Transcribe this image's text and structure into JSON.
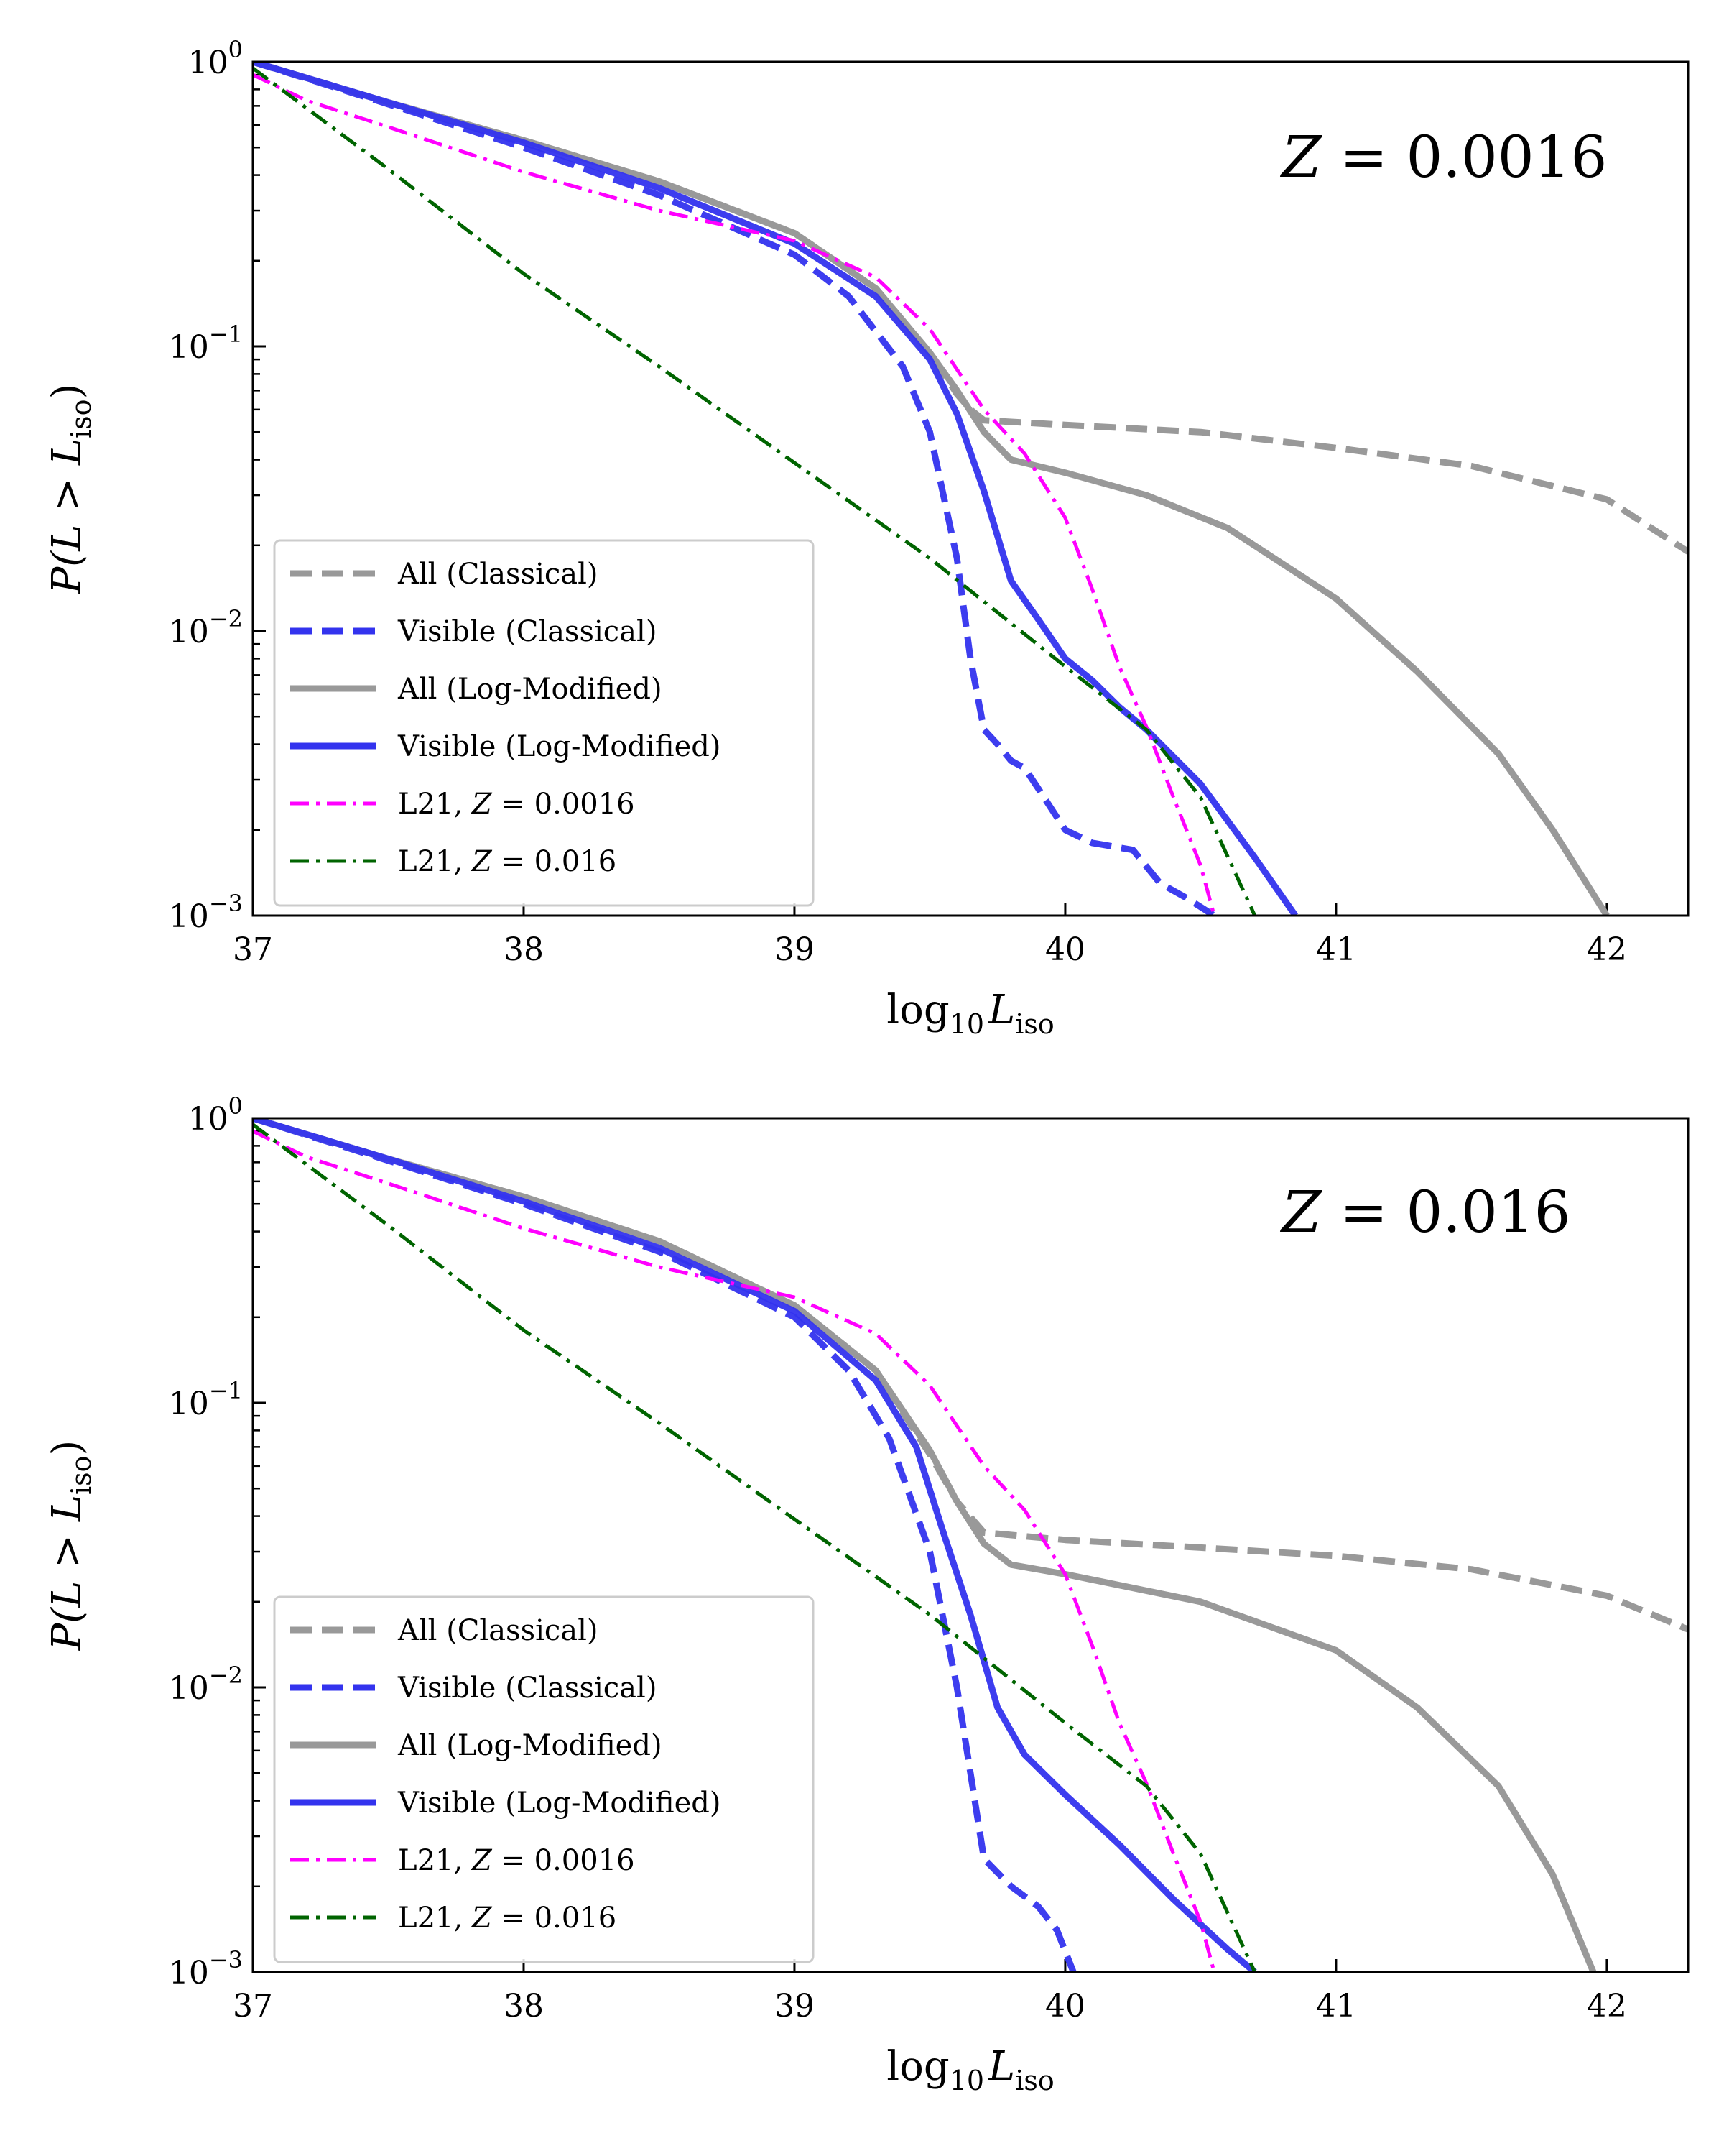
{
  "colors": {
    "all": "#999999",
    "visible": "#3333ee",
    "l21_z0016": "#ff00ff",
    "l21_z016": "#006400"
  },
  "chart_data": [
    {
      "type": "line",
      "annotation": "Z = 0.0016",
      "annotation_var": "Z",
      "annotation_value": "= 0.0016",
      "xlabel": "log10 L_iso",
      "xlabel_base": "log",
      "xlabel_sub": "10",
      "xlabel_var": "L",
      "xlabel_var_sub": "iso",
      "ylabel": "P(L > L_iso)",
      "ylabel_main": "P(L > L",
      "ylabel_sub": "iso",
      "ylabel_close": ")",
      "xlim": [
        37,
        42.3
      ],
      "ylim": [
        0.001,
        1
      ],
      "yscale": "log",
      "xticks": [
        "37",
        "38",
        "39",
        "40",
        "41",
        "42"
      ],
      "yticks": [
        {
          "base": "10",
          "exp": "0"
        },
        {
          "base": "10",
          "exp": "−1"
        },
        {
          "base": "10",
          "exp": "−2"
        },
        {
          "base": "10",
          "exp": "−3"
        }
      ],
      "legend_position": "lower-left",
      "series": [
        {
          "name": "All (Classical)",
          "style": "dashed",
          "color": "all",
          "x": [
            37.0,
            37.5,
            38.0,
            38.5,
            39.0,
            39.3,
            39.5,
            39.6,
            39.65,
            39.7,
            40.0,
            40.5,
            41.0,
            41.5,
            42.0,
            42.3
          ],
          "y": [
            1.0,
            0.72,
            0.53,
            0.38,
            0.25,
            0.16,
            0.095,
            0.068,
            0.06,
            0.055,
            0.053,
            0.05,
            0.044,
            0.038,
            0.029,
            0.019
          ]
        },
        {
          "name": "Visible (Classical)",
          "style": "dashed",
          "color": "visible",
          "x": [
            37.0,
            37.5,
            38.0,
            38.5,
            39.0,
            39.2,
            39.4,
            39.5,
            39.6,
            39.65,
            39.7,
            39.75,
            39.8,
            39.85,
            39.9,
            40.0,
            40.1,
            40.25,
            40.35,
            40.45,
            40.55
          ],
          "y": [
            1.0,
            0.71,
            0.5,
            0.34,
            0.21,
            0.15,
            0.085,
            0.05,
            0.018,
            0.008,
            0.0045,
            0.004,
            0.0035,
            0.0033,
            0.0028,
            0.002,
            0.0018,
            0.0017,
            0.0013,
            0.00115,
            0.001
          ]
        },
        {
          "name": "All (Log-Modified)",
          "style": "solid",
          "color": "all",
          "x": [
            37.0,
            37.5,
            38.0,
            38.5,
            39.0,
            39.3,
            39.5,
            39.6,
            39.7,
            39.8,
            40.0,
            40.3,
            40.6,
            41.0,
            41.3,
            41.6,
            41.8,
            42.0
          ],
          "y": [
            1.0,
            0.72,
            0.53,
            0.38,
            0.25,
            0.16,
            0.095,
            0.07,
            0.05,
            0.04,
            0.036,
            0.03,
            0.023,
            0.013,
            0.0072,
            0.0037,
            0.002,
            0.001
          ]
        },
        {
          "name": "Visible (Log-Modified)",
          "style": "solid",
          "color": "visible",
          "x": [
            37.0,
            37.5,
            38.0,
            38.5,
            39.0,
            39.3,
            39.5,
            39.6,
            39.7,
            39.8,
            39.9,
            40.0,
            40.1,
            40.2,
            40.3,
            40.5,
            40.7,
            40.85
          ],
          "y": [
            1.0,
            0.72,
            0.52,
            0.36,
            0.23,
            0.15,
            0.09,
            0.058,
            0.031,
            0.015,
            0.011,
            0.008,
            0.0067,
            0.0054,
            0.0045,
            0.0029,
            0.0016,
            0.001
          ]
        },
        {
          "name": "L21, Z = 0.0016",
          "name_prefix": "L21, ",
          "name_var": "Z",
          "name_val": " = 0.0016",
          "style": "dashdot",
          "color": "l21_z0016",
          "x": [
            37.0,
            37.2,
            37.5,
            38.0,
            38.5,
            39.0,
            39.3,
            39.5,
            39.7,
            39.85,
            40.0,
            40.1,
            40.2,
            40.3,
            40.4,
            40.5,
            40.55
          ],
          "y": [
            0.9,
            0.73,
            0.59,
            0.41,
            0.3,
            0.235,
            0.175,
            0.115,
            0.06,
            0.042,
            0.025,
            0.014,
            0.0075,
            0.0046,
            0.0026,
            0.0015,
            0.001
          ]
        },
        {
          "name": "L21, Z = 0.016",
          "name_prefix": "L21, ",
          "name_var": "Z",
          "name_val": " = 0.016",
          "style": "dashdot",
          "color": "l21_z016",
          "x": [
            37.0,
            37.5,
            38.0,
            38.5,
            39.0,
            39.5,
            40.0,
            40.3,
            40.5,
            40.7
          ],
          "y": [
            0.95,
            0.42,
            0.18,
            0.085,
            0.039,
            0.018,
            0.0075,
            0.0045,
            0.0026,
            0.001
          ]
        }
      ]
    },
    {
      "type": "line",
      "annotation": "Z = 0.016",
      "annotation_var": "Z",
      "annotation_value": "= 0.016",
      "xlabel": "log10 L_iso",
      "xlabel_base": "log",
      "xlabel_sub": "10",
      "xlabel_var": "L",
      "xlabel_var_sub": "iso",
      "ylabel": "P(L > L_iso)",
      "ylabel_main": "P(L > L",
      "ylabel_sub": "iso",
      "ylabel_close": ")",
      "xlim": [
        37,
        42.3
      ],
      "ylim": [
        0.001,
        1
      ],
      "yscale": "log",
      "xticks": [
        "37",
        "38",
        "39",
        "40",
        "41",
        "42"
      ],
      "yticks": [
        {
          "base": "10",
          "exp": "0"
        },
        {
          "base": "10",
          "exp": "−1"
        },
        {
          "base": "10",
          "exp": "−2"
        },
        {
          "base": "10",
          "exp": "−3"
        }
      ],
      "legend_position": "lower-left",
      "series": [
        {
          "name": "All (Classical)",
          "style": "dashed",
          "color": "all",
          "x": [
            37.0,
            37.5,
            38.0,
            38.5,
            39.0,
            39.3,
            39.5,
            39.6,
            39.7,
            40.0,
            40.5,
            41.0,
            41.5,
            42.0,
            42.3
          ],
          "y": [
            1.0,
            0.72,
            0.53,
            0.37,
            0.22,
            0.13,
            0.066,
            0.045,
            0.035,
            0.033,
            0.031,
            0.029,
            0.026,
            0.021,
            0.016
          ]
        },
        {
          "name": "Visible (Classical)",
          "style": "dashed",
          "color": "visible",
          "x": [
            37.0,
            37.5,
            38.0,
            38.5,
            39.0,
            39.2,
            39.35,
            39.5,
            39.6,
            39.65,
            39.7,
            39.8,
            39.9,
            39.97,
            40.03
          ],
          "y": [
            1.0,
            0.71,
            0.5,
            0.34,
            0.2,
            0.13,
            0.075,
            0.03,
            0.01,
            0.005,
            0.0025,
            0.002,
            0.0017,
            0.0014,
            0.001
          ]
        },
        {
          "name": "All (Log-Modified)",
          "style": "solid",
          "color": "all",
          "x": [
            37.0,
            37.5,
            38.0,
            38.5,
            39.0,
            39.3,
            39.5,
            39.6,
            39.7,
            39.8,
            40.0,
            40.5,
            41.0,
            41.3,
            41.6,
            41.8,
            41.95
          ],
          "y": [
            1.0,
            0.72,
            0.53,
            0.37,
            0.22,
            0.13,
            0.068,
            0.045,
            0.032,
            0.027,
            0.025,
            0.02,
            0.0135,
            0.0085,
            0.0045,
            0.0022,
            0.001
          ]
        },
        {
          "name": "Visible (Log-Modified)",
          "style": "solid",
          "color": "visible",
          "x": [
            37.0,
            37.5,
            38.0,
            38.5,
            39.0,
            39.3,
            39.45,
            39.55,
            39.65,
            39.75,
            39.85,
            40.0,
            40.2,
            40.4,
            40.6,
            40.7
          ],
          "y": [
            1.0,
            0.72,
            0.51,
            0.35,
            0.21,
            0.12,
            0.07,
            0.035,
            0.018,
            0.0085,
            0.0058,
            0.0042,
            0.0028,
            0.0018,
            0.0012,
            0.001
          ]
        },
        {
          "name": "L21, Z = 0.0016",
          "name_prefix": "L21, ",
          "name_var": "Z",
          "name_val": " = 0.0016",
          "style": "dashdot",
          "color": "l21_z0016",
          "x": [
            37.0,
            37.2,
            37.5,
            38.0,
            38.5,
            39.0,
            39.3,
            39.5,
            39.7,
            39.85,
            40.0,
            40.1,
            40.2,
            40.3,
            40.4,
            40.5,
            40.55
          ],
          "y": [
            0.9,
            0.73,
            0.59,
            0.41,
            0.3,
            0.235,
            0.175,
            0.115,
            0.06,
            0.042,
            0.025,
            0.014,
            0.0075,
            0.0046,
            0.0026,
            0.0015,
            0.001
          ]
        },
        {
          "name": "L21, Z = 0.016",
          "name_prefix": "L21, ",
          "name_var": "Z",
          "name_val": " = 0.016",
          "style": "dashdot",
          "color": "l21_z016",
          "x": [
            37.0,
            37.5,
            38.0,
            38.5,
            39.0,
            39.5,
            40.0,
            40.3,
            40.5,
            40.7
          ],
          "y": [
            0.95,
            0.42,
            0.18,
            0.085,
            0.039,
            0.018,
            0.0075,
            0.0045,
            0.0026,
            0.001
          ]
        }
      ]
    }
  ]
}
